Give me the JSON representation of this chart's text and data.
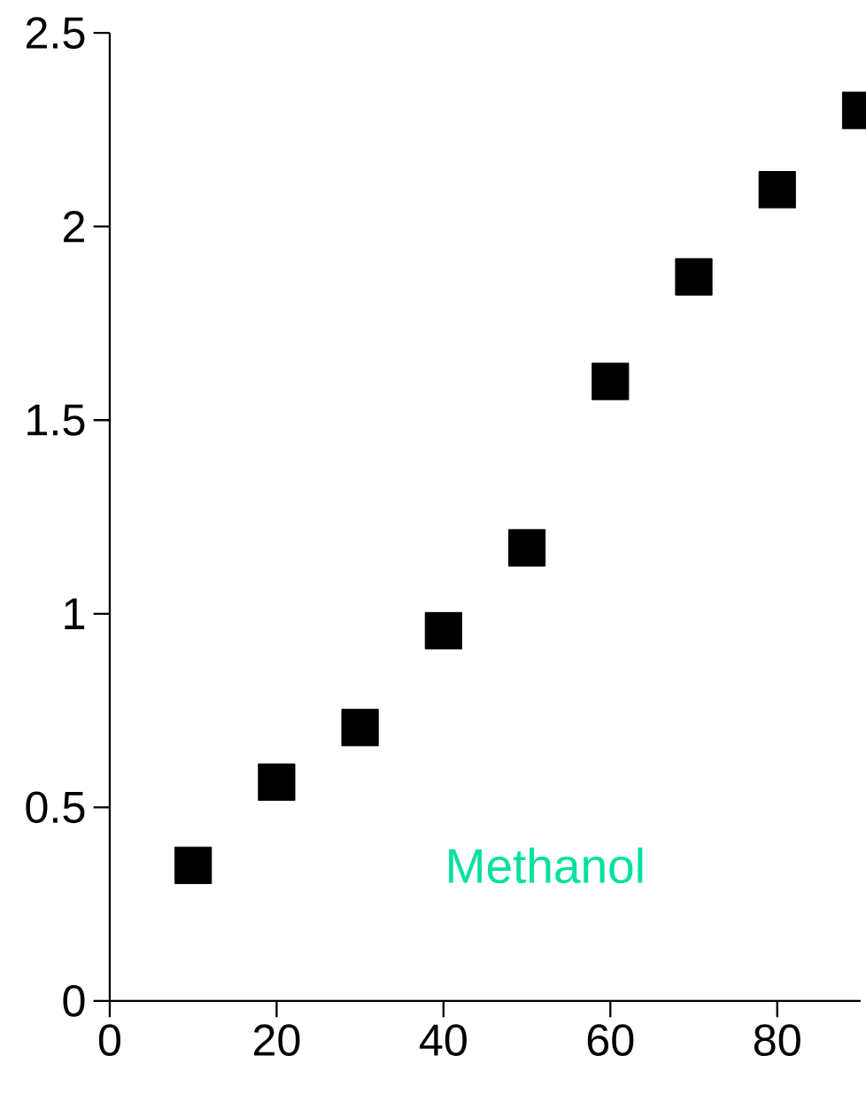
{
  "chart_data": {
    "type": "scatter",
    "x": [
      10,
      20,
      30,
      40,
      50,
      60,
      70,
      80,
      90
    ],
    "values": [
      0.35,
      0.565,
      0.706,
      0.956,
      1.17,
      1.6,
      1.87,
      2.095,
      2.3
    ],
    "color": "#000000",
    "marker": "square",
    "xlim": [
      0,
      90
    ],
    "xticks": [
      0,
      20,
      40,
      60,
      80
    ],
    "ylim": [
      0,
      2.5
    ],
    "yticks": [
      0,
      0.5,
      1,
      1.5,
      2,
      2.5
    ],
    "annotations": [
      "Methanol"
    ]
  }
}
